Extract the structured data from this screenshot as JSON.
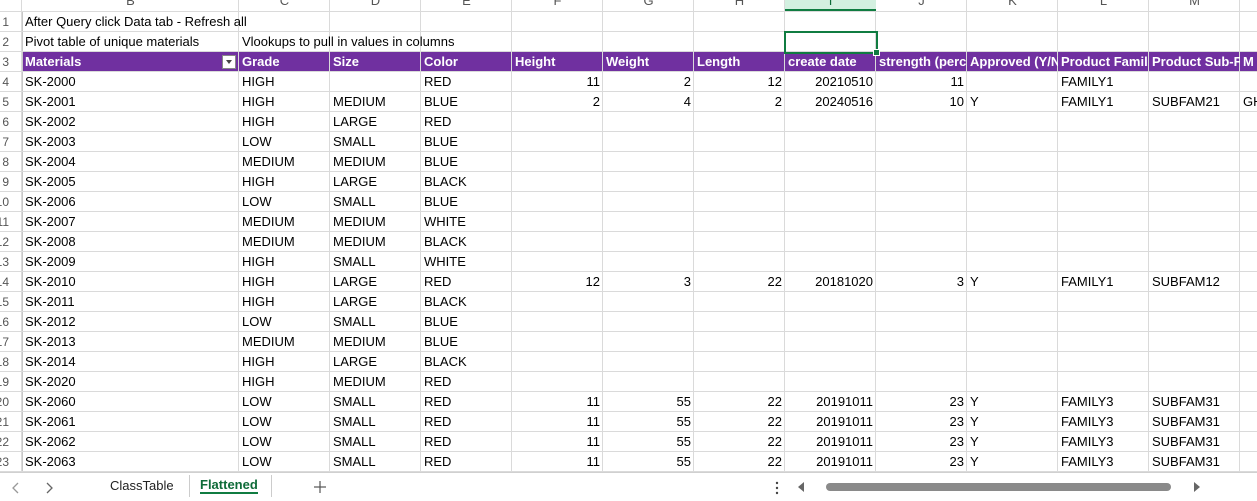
{
  "sheet": {
    "column_letters": [
      "B",
      "C",
      "D",
      "E",
      "F",
      "G",
      "H",
      "I",
      "J",
      "K",
      "L",
      "M"
    ],
    "selected_column": 7,
    "row_numbers": [
      1,
      2,
      3,
      4,
      5,
      6,
      7,
      8,
      9,
      10,
      11,
      12,
      13,
      14,
      15,
      16,
      17,
      18,
      19,
      20,
      21,
      22,
      23
    ],
    "notes": [
      {
        "row": 0,
        "col": 0,
        "text": "After Query click Data tab - Refresh all"
      },
      {
        "row": 1,
        "col": 0,
        "text": "Pivot table of unique materials"
      },
      {
        "row": 1,
        "col": 1,
        "text": "Vlookups to pull in values in columns"
      }
    ],
    "header": [
      "Materials",
      "Grade",
      "Size",
      "Color",
      "Height",
      "Weight",
      "Length",
      "create date",
      "strength (perc",
      "Approved (Y/N",
      "Product Famil",
      "Product Sub-F",
      "M"
    ],
    "rows": [
      [
        "SK-2000",
        "HIGH",
        null,
        "RED",
        11,
        2,
        12,
        20210510,
        11,
        null,
        "FAMILY1",
        null,
        null
      ],
      [
        "SK-2001",
        "HIGH",
        "MEDIUM",
        "BLUE",
        2,
        4,
        2,
        20240516,
        10,
        "Y",
        "FAMILY1",
        "SUBFAM21",
        "GH"
      ],
      [
        "SK-2002",
        "HIGH",
        "LARGE",
        "RED",
        null,
        null,
        null,
        null,
        null,
        null,
        null,
        null,
        null
      ],
      [
        "SK-2003",
        "LOW",
        "SMALL",
        "BLUE",
        null,
        null,
        null,
        null,
        null,
        null,
        null,
        null,
        null
      ],
      [
        "SK-2004",
        "MEDIUM",
        "MEDIUM",
        "BLUE",
        null,
        null,
        null,
        null,
        null,
        null,
        null,
        null,
        null
      ],
      [
        "SK-2005",
        "HIGH",
        "LARGE",
        "BLACK",
        null,
        null,
        null,
        null,
        null,
        null,
        null,
        null,
        null
      ],
      [
        "SK-2006",
        "LOW",
        "SMALL",
        "BLUE",
        null,
        null,
        null,
        null,
        null,
        null,
        null,
        null,
        null
      ],
      [
        "SK-2007",
        "MEDIUM",
        "MEDIUM",
        "WHITE",
        null,
        null,
        null,
        null,
        null,
        null,
        null,
        null,
        null
      ],
      [
        "SK-2008",
        "MEDIUM",
        "MEDIUM",
        "BLACK",
        null,
        null,
        null,
        null,
        null,
        null,
        null,
        null,
        null
      ],
      [
        "SK-2009",
        "HIGH",
        "SMALL",
        "WHITE",
        null,
        null,
        null,
        null,
        null,
        null,
        null,
        null,
        null
      ],
      [
        "SK-2010",
        "HIGH",
        "LARGE",
        "RED",
        12,
        3,
        22,
        20181020,
        3,
        "Y",
        "FAMILY1",
        "SUBFAM12",
        null
      ],
      [
        "SK-2011",
        "HIGH",
        "LARGE",
        "BLACK",
        null,
        null,
        null,
        null,
        null,
        null,
        null,
        null,
        null
      ],
      [
        "SK-2012",
        "LOW",
        "SMALL",
        "BLUE",
        null,
        null,
        null,
        null,
        null,
        null,
        null,
        null,
        null
      ],
      [
        "SK-2013",
        "MEDIUM",
        "MEDIUM",
        "BLUE",
        null,
        null,
        null,
        null,
        null,
        null,
        null,
        null,
        null
      ],
      [
        "SK-2014",
        "HIGH",
        "LARGE",
        "BLACK",
        null,
        null,
        null,
        null,
        null,
        null,
        null,
        null,
        null
      ],
      [
        "SK-2020",
        "HIGH",
        "MEDIUM",
        "RED",
        null,
        null,
        null,
        null,
        null,
        null,
        null,
        null,
        null
      ],
      [
        "SK-2060",
        "LOW",
        "SMALL",
        "RED",
        11,
        55,
        22,
        20191011,
        23,
        "Y",
        "FAMILY3",
        "SUBFAM31",
        null
      ],
      [
        "SK-2061",
        "LOW",
        "SMALL",
        "RED",
        11,
        55,
        22,
        20191011,
        23,
        "Y",
        "FAMILY3",
        "SUBFAM31",
        null
      ],
      [
        "SK-2062",
        "LOW",
        "SMALL",
        "RED",
        11,
        55,
        22,
        20191011,
        23,
        "Y",
        "FAMILY3",
        "SUBFAM31",
        null
      ],
      [
        "SK-2063",
        "LOW",
        "SMALL",
        "RED",
        11,
        55,
        22,
        20191011,
        23,
        "Y",
        "FAMILY3",
        "SUBFAM31",
        null
      ]
    ]
  },
  "tabs": [
    "ClassTable",
    "Flattened"
  ],
  "active_tab": 1
}
